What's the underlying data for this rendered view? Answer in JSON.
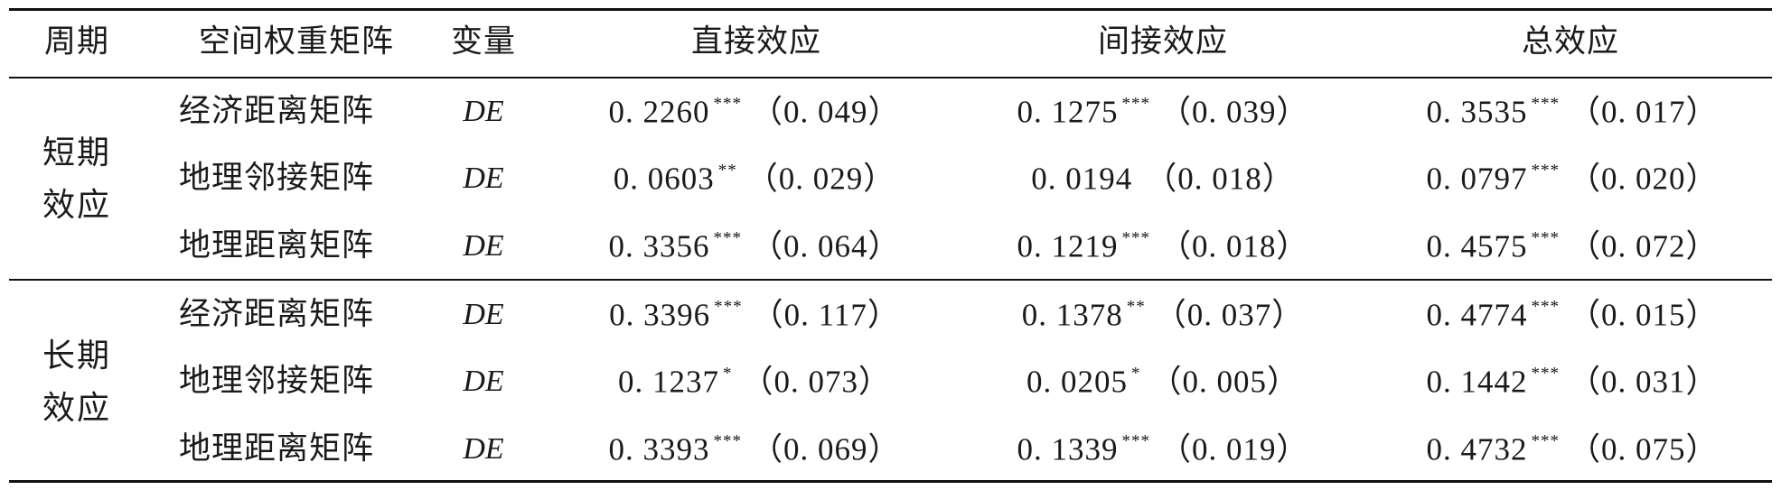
{
  "table": {
    "headers": [
      "周期",
      "空间权重矩阵",
      "变量",
      "直接效应",
      "间接效应",
      "总效应"
    ],
    "groups": [
      {
        "period": "短期效应",
        "rows": [
          {
            "matrix": "经济距离矩阵",
            "variable": "DE",
            "direct": {
              "value": "0. 2260",
              "sig": "***",
              "se": "（0. 049）"
            },
            "indirect": {
              "value": "0. 1275",
              "sig": "***",
              "se": "（0. 039）"
            },
            "total": {
              "value": "0. 3535",
              "sig": "***",
              "se": "（0. 017）"
            }
          },
          {
            "matrix": "地理邻接矩阵",
            "variable": "DE",
            "direct": {
              "value": "0. 0603",
              "sig": "**",
              "se": "（0. 029）"
            },
            "indirect": {
              "value": "0. 0194",
              "sig": "",
              "se": "（0. 018）"
            },
            "total": {
              "value": "0. 0797",
              "sig": "***",
              "se": "（0. 020）"
            }
          },
          {
            "matrix": "地理距离矩阵",
            "variable": "DE",
            "direct": {
              "value": "0. 3356",
              "sig": "***",
              "se": "（0. 064）"
            },
            "indirect": {
              "value": "0. 1219",
              "sig": "***",
              "se": "（0. 018）"
            },
            "total": {
              "value": "0. 4575",
              "sig": "***",
              "se": "（0. 072）"
            }
          }
        ]
      },
      {
        "period": "长期效应",
        "rows": [
          {
            "matrix": "经济距离矩阵",
            "variable": "DE",
            "direct": {
              "value": "0. 3396",
              "sig": "***",
              "se": "（0. 117）"
            },
            "indirect": {
              "value": "0. 1378",
              "sig": "**",
              "se": "（0. 037）"
            },
            "total": {
              "value": "0. 4774",
              "sig": "***",
              "se": "（0. 015）"
            }
          },
          {
            "matrix": "地理邻接矩阵",
            "variable": "DE",
            "direct": {
              "value": "0. 1237",
              "sig": "*",
              "se": "（0. 073）"
            },
            "indirect": {
              "value": "0. 0205",
              "sig": "*",
              "se": "（0. 005）"
            },
            "total": {
              "value": "0. 1442",
              "sig": "***",
              "se": "（0. 031）"
            }
          },
          {
            "matrix": "地理距离矩阵",
            "variable": "DE",
            "direct": {
              "value": "0. 3393",
              "sig": "***",
              "se": "（0. 069）"
            },
            "indirect": {
              "value": "0. 1339",
              "sig": "***",
              "se": "（0. 019）"
            },
            "total": {
              "value": "0. 4732",
              "sig": "***",
              "se": "（0. 075）"
            }
          }
        ]
      }
    ]
  }
}
